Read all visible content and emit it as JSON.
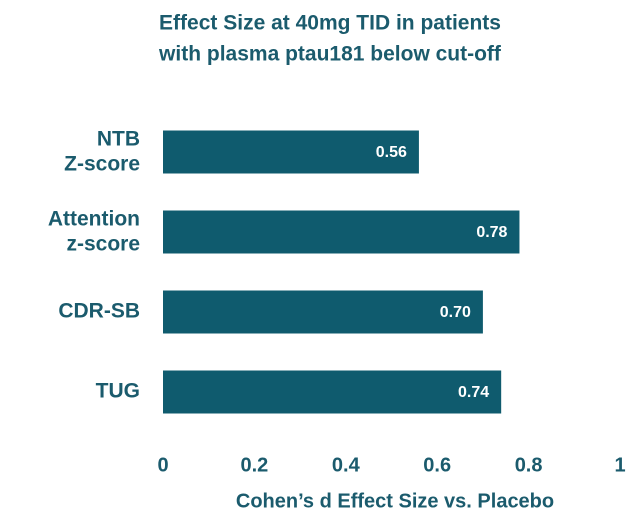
{
  "chart_data": {
    "type": "barh",
    "title": [
      "Effect Size at 40mg TID in patients",
      "with plasma ptau181 below cut-off"
    ],
    "categories": [
      "NTB\nZ-score",
      "Attention\nz-score",
      "CDR-SB",
      "TUG"
    ],
    "values": [
      0.56,
      0.78,
      0.7,
      0.74
    ],
    "value_labels": [
      "0.56",
      "0.78",
      "0.70",
      "0.74"
    ],
    "color": "#0f5b6e",
    "xlabel": "Cohen’s d Effect Size vs. Placebo",
    "xlim": [
      0,
      1
    ],
    "xticks": [
      0,
      0.2,
      0.4,
      0.6,
      0.8,
      1
    ],
    "grid": false
  }
}
